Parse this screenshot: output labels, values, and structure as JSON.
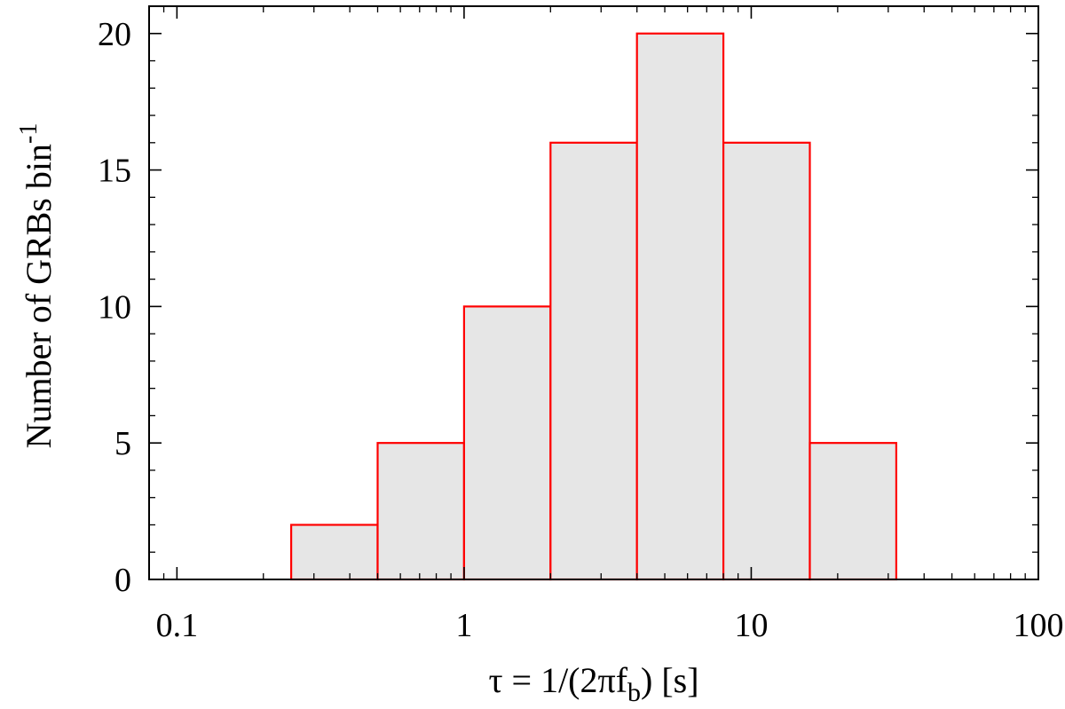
{
  "chart_data": {
    "type": "bar",
    "xscale": "log",
    "xlim": [
      0.08,
      100
    ],
    "ylim": [
      0,
      21
    ],
    "grid": false,
    "colors": {
      "bar_fill": "#e6e6e6",
      "bar_edge": "#ff0000",
      "axes": "#000000"
    },
    "bins": [
      {
        "x0": 0.25,
        "x1": 0.5,
        "count": 2
      },
      {
        "x0": 0.5,
        "x1": 1,
        "count": 5
      },
      {
        "x0": 1,
        "x1": 2,
        "count": 10
      },
      {
        "x0": 2,
        "x1": 4,
        "count": 16
      },
      {
        "x0": 4,
        "x1": 8,
        "count": 20
      },
      {
        "x0": 8,
        "x1": 16,
        "count": 16
      },
      {
        "x0": 16,
        "x1": 32,
        "count": 5
      }
    ],
    "x_ticks": [
      {
        "value": 0.1,
        "label": "0.1"
      },
      {
        "value": 1,
        "label": "1"
      },
      {
        "value": 10,
        "label": "10"
      },
      {
        "value": 100,
        "label": "100"
      }
    ],
    "y_ticks": [
      {
        "value": 0,
        "label": "0"
      },
      {
        "value": 5,
        "label": "5"
      },
      {
        "value": 10,
        "label": "10"
      },
      {
        "value": 15,
        "label": "15"
      },
      {
        "value": 20,
        "label": "20"
      }
    ],
    "xlabel": {
      "main": "τ = 1/(2πf",
      "sub": "b",
      "tail": ") [s]"
    },
    "ylabel": {
      "main": "Number of GRBs bin",
      "sup": "-1"
    }
  }
}
